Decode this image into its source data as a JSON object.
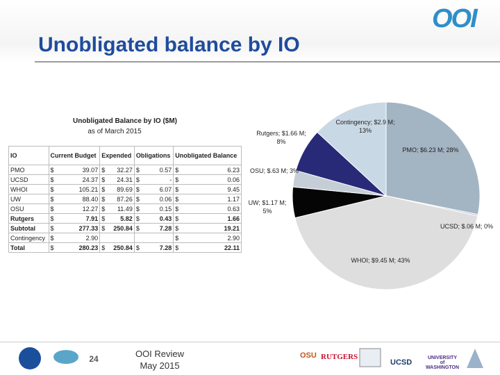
{
  "header": {
    "title": "Unobligated balance by IO",
    "logo": "OOI"
  },
  "table": {
    "title": "Unobligated Balance by IO ($M)",
    "subtitle": "as of March 2015",
    "currency": "$",
    "columns": [
      "IO",
      "Current Budget",
      "Expended",
      "Obligations",
      "Unobligated Balance"
    ],
    "rows": [
      [
        "PMO",
        "39.07",
        "32.27",
        "0.57",
        "6.23"
      ],
      [
        "UCSD",
        "24.37",
        "24.31",
        "-",
        "0.06"
      ],
      [
        "WHOI",
        "105.21",
        "89.69",
        "6.07",
        "9.45"
      ],
      [
        "UW",
        "88.40",
        "87.26",
        "0.06",
        "1.17"
      ],
      [
        "OSU",
        "12.27",
        "11.49",
        "0.15",
        "0.63"
      ],
      [
        "Rutgers",
        "7.91",
        "5.82",
        "0.43",
        "1.66"
      ],
      [
        "Subtotal",
        "277.33",
        "250.84",
        "7.28",
        "19.21"
      ],
      [
        "Contingency",
        "2.90",
        null,
        null,
        "2.90"
      ],
      [
        "Total",
        "280.23",
        "250.84",
        "7.28",
        "22.11"
      ]
    ]
  },
  "chart_data": {
    "type": "pie",
    "categories": [
      "PMO",
      "UCSD",
      "WHOI",
      "UW",
      "OSU",
      "Rutgers",
      "Contingency"
    ],
    "values": [
      6.23,
      0.06,
      9.45,
      1.17,
      0.63,
      1.66,
      2.9
    ],
    "value_labels": [
      "PMO; $6.23 M; 28%",
      "UCSD; $.06 M; 0%",
      "WHOI; $9.45 M; 43%",
      "UW; $1.17 M; 5%",
      "OSU; $.63 M; 3%",
      "Rutgers; $1.66 M; 8%",
      "Contingency; $2.9 M; 13%"
    ],
    "colors": [
      "#a3b4c3",
      "#b8c6d2",
      "#dedede",
      "#050505",
      "#c5ced6",
      "#282a78",
      "#c9d8e5"
    ]
  },
  "footer": {
    "page": "24",
    "event": "OOI Review",
    "date": "May 2015",
    "logos": [
      "OSU",
      "RUTGERS",
      "UCSD",
      "UNIVERSITY of WASHINGTON"
    ]
  }
}
